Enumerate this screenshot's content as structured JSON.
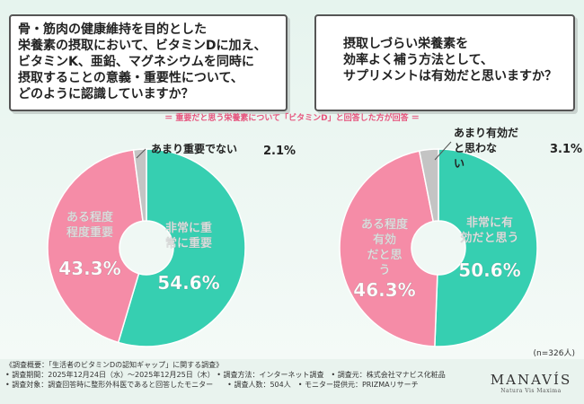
{
  "questions": {
    "left": [
      "骨・筋肉の健康維持を目的とした",
      "栄養素の摂取において、ビタミンDに加え、",
      "ビタミンK、亜鉛、マグネシウムを同時に",
      "摂取することの意義・重要性について、",
      "どのように認識していますか？"
    ],
    "right": [
      "摂取しづらい栄養素を",
      "効率よく補う方法として、",
      "サプリメントは有効だと思いますか？"
    ]
  },
  "note": "＝ 重要だと思う栄養素について「ビタミンD」と回答した方が回答 ＝",
  "chart_data": [
    {
      "type": "pie",
      "categories": [
        "非常に重要",
        "ある程度重要",
        "あまり重要でない"
      ],
      "values": [
        54.6,
        43.3,
        2.1
      ],
      "value_labels": [
        "54.6%",
        "43.3%",
        "2.1%"
      ],
      "colors": [
        "#36cfb1",
        "#f58ca7",
        "#c4c4c4"
      ]
    },
    {
      "type": "pie",
      "categories": [
        "非常に有効だと思う",
        "ある程度有効だと思う",
        "あまり有効だと思わない"
      ],
      "values": [
        50.6,
        46.3,
        3.1
      ],
      "value_labels": [
        "50.6%",
        "46.3%",
        "3.1%"
      ],
      "colors": [
        "#36cfb1",
        "#f58ca7",
        "#c4c4c4"
      ]
    }
  ],
  "n_label": "(n=326人)",
  "footer": [
    "《調査概要：「生活者のビタミンDの認知ギャップ」に関する調査》",
    "• 調査期間：2025年12月24日（水）〜2025年12月25日（木） • 調査方法：インターネット調査　• 調査元：株式会社マナビス化粧品",
    "• 調査対象：調査回答時に整形外科医であると回答したモニター　　• 調査人数：504人　• モニター提供元：PRIZMAリサーチ"
  ],
  "brand": {
    "name": "MANAVÍS",
    "tagline": "Natura Vis Maxima"
  }
}
